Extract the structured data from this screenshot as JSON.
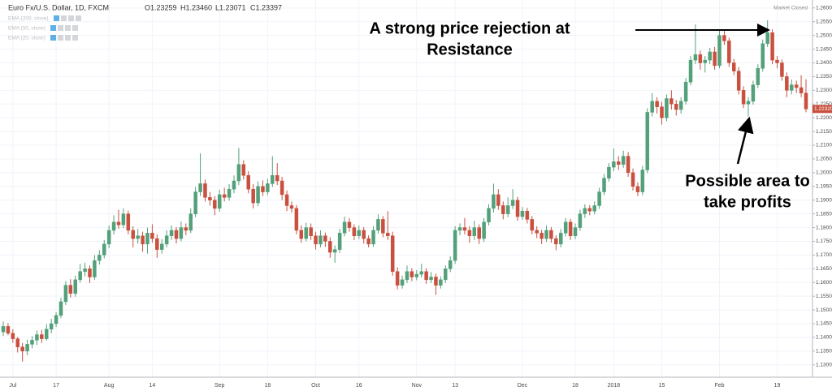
{
  "chart_data": {
    "type": "candlestick",
    "title": "Euro Fx/U.S. Dollar, 1D, FXCM",
    "ohlc_readout": [
      "O1.23259",
      "H1.23460",
      "L1.23071",
      "C1.23397"
    ],
    "indicators": [
      "EMA (200, close)",
      "EMA (50, close)",
      "EMA (20, close)"
    ],
    "status": "Market Closed",
    "annotations": [
      [
        "A strong price rejection at",
        "Resistance"
      ],
      [
        "Possible area to",
        "take profits"
      ]
    ],
    "up_color": "#53a07a",
    "down_color": "#c9503f",
    "grid": true,
    "last_price": {
      "value": 1.2232,
      "label": "1.22320"
    },
    "ylim": [
      1.1255,
      1.2629
    ],
    "yticks": [
      {
        "value": 1.13,
        "label": "1.13000"
      },
      {
        "value": 1.135,
        "label": "1.13500"
      },
      {
        "value": 1.14,
        "label": "1.14000"
      },
      {
        "value": 1.145,
        "label": "1.14500"
      },
      {
        "value": 1.15,
        "label": "1.15000"
      },
      {
        "value": 1.155,
        "label": "1.15500"
      },
      {
        "value": 1.16,
        "label": "1.16000"
      },
      {
        "value": 1.165,
        "label": "1.16500"
      },
      {
        "value": 1.17,
        "label": "1.17000"
      },
      {
        "value": 1.175,
        "label": "1.17500"
      },
      {
        "value": 1.18,
        "label": "1.18000"
      },
      {
        "value": 1.185,
        "label": "1.18500"
      },
      {
        "value": 1.19,
        "label": "1.19000"
      },
      {
        "value": 1.195,
        "label": "1.19500"
      },
      {
        "value": 1.2,
        "label": "1.20000"
      },
      {
        "value": 1.205,
        "label": "1.20500"
      },
      {
        "value": 1.21,
        "label": "1.21000"
      },
      {
        "value": 1.215,
        "label": "1.21500"
      },
      {
        "value": 1.22,
        "label": "1.22000"
      },
      {
        "value": 1.225,
        "label": "1.22500"
      },
      {
        "value": 1.23,
        "label": "1.23000"
      },
      {
        "value": 1.235,
        "label": "1.23500"
      },
      {
        "value": 1.24,
        "label": "1.24000"
      },
      {
        "value": 1.245,
        "label": "1.24500"
      },
      {
        "value": 1.25,
        "label": "1.25000"
      },
      {
        "value": 1.255,
        "label": "1.25500"
      },
      {
        "value": 1.26,
        "label": "1.26000"
      }
    ],
    "categories": [
      null,
      null,
      "Jul",
      null,
      null,
      null,
      null,
      null,
      null,
      null,
      null,
      "17",
      null,
      null,
      null,
      null,
      null,
      null,
      null,
      null,
      null,
      null,
      "Aug",
      null,
      null,
      null,
      null,
      null,
      null,
      null,
      null,
      "14",
      null,
      null,
      null,
      null,
      null,
      null,
      null,
      null,
      null,
      null,
      null,
      null,
      null,
      "Sep",
      null,
      null,
      null,
      null,
      null,
      null,
      null,
      null,
      null,
      "18",
      null,
      null,
      null,
      null,
      null,
      null,
      null,
      null,
      null,
      "Oct",
      null,
      null,
      null,
      null,
      null,
      null,
      null,
      null,
      "16",
      null,
      null,
      null,
      null,
      null,
      null,
      null,
      null,
      null,
      null,
      null,
      "Nov",
      null,
      null,
      null,
      null,
      null,
      null,
      null,
      "13",
      null,
      null,
      null,
      null,
      null,
      null,
      null,
      null,
      null,
      null,
      null,
      null,
      null,
      "Dec",
      null,
      null,
      null,
      null,
      null,
      null,
      null,
      null,
      null,
      null,
      "18",
      null,
      null,
      null,
      null,
      null,
      null,
      null,
      "2018",
      null,
      null,
      null,
      null,
      null,
      null,
      null,
      null,
      null,
      "15",
      null,
      null,
      null,
      null,
      null,
      null,
      null,
      null,
      null,
      null,
      null,
      "Feb",
      null,
      null,
      null,
      null,
      null,
      null,
      null,
      null,
      null,
      null,
      null,
      "19",
      null,
      null,
      null,
      null,
      null,
      null
    ],
    "ohlc": [
      [
        1.142,
        1.1458,
        1.1405,
        1.144
      ],
      [
        1.144,
        1.1452,
        1.1408,
        1.1415
      ],
      [
        1.1415,
        1.143,
        1.138,
        1.1395
      ],
      [
        1.1395,
        1.1402,
        1.1345,
        1.1365
      ],
      [
        1.1365,
        1.138,
        1.1312,
        1.135
      ],
      [
        1.135,
        1.1392,
        1.1335,
        1.1375
      ],
      [
        1.1375,
        1.1405,
        1.136,
        1.139
      ],
      [
        1.139,
        1.1425,
        1.1372,
        1.141
      ],
      [
        1.141,
        1.1428,
        1.138,
        1.1395
      ],
      [
        1.1395,
        1.1448,
        1.1388,
        1.143
      ],
      [
        1.143,
        1.1468,
        1.1415,
        1.145
      ],
      [
        1.145,
        1.1492,
        1.1438,
        1.148
      ],
      [
        1.148,
        1.1545,
        1.147,
        1.153
      ],
      [
        1.153,
        1.1605,
        1.1518,
        1.159
      ],
      [
        1.159,
        1.1612,
        1.1545,
        1.156
      ],
      [
        1.156,
        1.1625,
        1.1548,
        1.161
      ],
      [
        1.161,
        1.1668,
        1.16,
        1.164
      ],
      [
        1.164,
        1.1672,
        1.1622,
        1.165
      ],
      [
        1.165,
        1.1662,
        1.1598,
        1.162
      ],
      [
        1.162,
        1.17,
        1.161,
        1.168
      ],
      [
        1.168,
        1.1718,
        1.1665,
        1.17
      ],
      [
        1.17,
        1.1755,
        1.1688,
        1.174
      ],
      [
        1.174,
        1.1808,
        1.1725,
        1.179
      ],
      [
        1.179,
        1.1845,
        1.1775,
        1.182
      ],
      [
        1.182,
        1.1865,
        1.1795,
        1.181
      ],
      [
        1.181,
        1.187,
        1.1798,
        1.185
      ],
      [
        1.185,
        1.1862,
        1.1775,
        1.179
      ],
      [
        1.179,
        1.1805,
        1.1728,
        1.176
      ],
      [
        1.176,
        1.1795,
        1.1742,
        1.177
      ],
      [
        1.177,
        1.1785,
        1.1712,
        1.174
      ],
      [
        1.174,
        1.18,
        1.1705,
        1.178
      ],
      [
        1.178,
        1.1812,
        1.1745,
        1.176
      ],
      [
        1.176,
        1.1775,
        1.169,
        1.172
      ],
      [
        1.172,
        1.1758,
        1.1705,
        1.174
      ],
      [
        1.174,
        1.179,
        1.1728,
        1.177
      ],
      [
        1.177,
        1.1808,
        1.1755,
        1.179
      ],
      [
        1.179,
        1.1802,
        1.1742,
        1.176
      ],
      [
        1.176,
        1.1822,
        1.175,
        1.18
      ],
      [
        1.18,
        1.1815,
        1.1772,
        1.179
      ],
      [
        1.179,
        1.187,
        1.178,
        1.185
      ],
      [
        1.185,
        1.1948,
        1.1838,
        1.193
      ],
      [
        1.193,
        1.207,
        1.1915,
        1.196
      ],
      [
        1.196,
        1.1975,
        1.1895,
        1.191
      ],
      [
        1.191,
        1.193,
        1.188,
        1.19
      ],
      [
        1.19,
        1.1915,
        1.1845,
        1.187
      ],
      [
        1.187,
        1.1938,
        1.1858,
        1.192
      ],
      [
        1.192,
        1.1945,
        1.1895,
        1.191
      ],
      [
        1.191,
        1.1958,
        1.1898,
        1.194
      ],
      [
        1.194,
        1.199,
        1.1925,
        1.197
      ],
      [
        1.197,
        1.209,
        1.1955,
        1.203
      ],
      [
        1.203,
        1.2045,
        1.1975,
        1.199
      ],
      [
        1.199,
        1.2005,
        1.1925,
        1.194
      ],
      [
        1.194,
        1.1958,
        1.187,
        1.189
      ],
      [
        1.189,
        1.1968,
        1.1878,
        1.195
      ],
      [
        1.195,
        1.1972,
        1.1915,
        1.193
      ],
      [
        1.193,
        1.1978,
        1.1918,
        1.196
      ],
      [
        1.196,
        1.206,
        1.1948,
        1.199
      ],
      [
        1.199,
        1.2035,
        1.1955,
        1.197
      ],
      [
        1.197,
        1.1985,
        1.19,
        1.192
      ],
      [
        1.192,
        1.1935,
        1.186,
        1.188
      ],
      [
        1.188,
        1.1895,
        1.1855,
        1.187
      ],
      [
        1.187,
        1.1882,
        1.1775,
        1.179
      ],
      [
        1.179,
        1.1808,
        1.1745,
        1.176
      ],
      [
        1.176,
        1.1818,
        1.175,
        1.18
      ],
      [
        1.18,
        1.1815,
        1.1755,
        1.177
      ],
      [
        1.177,
        1.1785,
        1.172,
        1.174
      ],
      [
        1.174,
        1.179,
        1.1728,
        1.177
      ],
      [
        1.177,
        1.1782,
        1.173,
        1.175
      ],
      [
        1.175,
        1.1765,
        1.169,
        1.171
      ],
      [
        1.171,
        1.1735,
        1.1672,
        1.172
      ],
      [
        1.172,
        1.1795,
        1.1708,
        1.178
      ],
      [
        1.178,
        1.184,
        1.1768,
        1.182
      ],
      [
        1.182,
        1.1835,
        1.1785,
        1.18
      ],
      [
        1.18,
        1.1812,
        1.1755,
        1.177
      ],
      [
        1.177,
        1.1808,
        1.1758,
        1.179
      ],
      [
        1.179,
        1.1802,
        1.1742,
        1.176
      ],
      [
        1.176,
        1.1772,
        1.1728,
        1.174
      ],
      [
        1.174,
        1.1805,
        1.173,
        1.179
      ],
      [
        1.179,
        1.1848,
        1.1778,
        1.183
      ],
      [
        1.183,
        1.1842,
        1.1765,
        1.178
      ],
      [
        1.178,
        1.186,
        1.1755,
        1.177
      ],
      [
        1.177,
        1.1785,
        1.1625,
        1.164
      ],
      [
        1.164,
        1.1655,
        1.1575,
        1.159
      ],
      [
        1.159,
        1.1625,
        1.1578,
        1.161
      ],
      [
        1.161,
        1.1662,
        1.1598,
        1.164
      ],
      [
        1.164,
        1.1652,
        1.1605,
        1.162
      ],
      [
        1.162,
        1.1645,
        1.1608,
        1.163
      ],
      [
        1.163,
        1.1668,
        1.1618,
        1.164
      ],
      [
        1.164,
        1.1652,
        1.1595,
        1.161
      ],
      [
        1.161,
        1.1638,
        1.1598,
        1.162
      ],
      [
        1.162,
        1.1632,
        1.1555,
        1.159
      ],
      [
        1.159,
        1.1622,
        1.1578,
        1.161
      ],
      [
        1.161,
        1.1662,
        1.1598,
        1.165
      ],
      [
        1.165,
        1.1695,
        1.1638,
        1.168
      ],
      [
        1.168,
        1.1805,
        1.1668,
        1.179
      ],
      [
        1.179,
        1.1815,
        1.1772,
        1.18
      ],
      [
        1.18,
        1.1835,
        1.1775,
        1.179
      ],
      [
        1.179,
        1.1805,
        1.1745,
        1.177
      ],
      [
        1.177,
        1.1825,
        1.1755,
        1.18
      ],
      [
        1.18,
        1.1812,
        1.174,
        1.176
      ],
      [
        1.176,
        1.1835,
        1.1748,
        1.182
      ],
      [
        1.182,
        1.1885,
        1.1808,
        1.187
      ],
      [
        1.187,
        1.196,
        1.1855,
        1.192
      ],
      [
        1.192,
        1.194,
        1.1865,
        1.188
      ],
      [
        1.188,
        1.1895,
        1.183,
        1.185
      ],
      [
        1.185,
        1.191,
        1.1838,
        1.188
      ],
      [
        1.188,
        1.194,
        1.1868,
        1.19
      ],
      [
        1.19,
        1.1912,
        1.1825,
        1.184
      ],
      [
        1.184,
        1.1875,
        1.1828,
        1.186
      ],
      [
        1.186,
        1.1872,
        1.1815,
        1.183
      ],
      [
        1.183,
        1.1842,
        1.1775,
        1.179
      ],
      [
        1.179,
        1.1805,
        1.1762,
        1.178
      ],
      [
        1.178,
        1.1792,
        1.174,
        1.176
      ],
      [
        1.176,
        1.1808,
        1.1748,
        1.179
      ],
      [
        1.179,
        1.1802,
        1.1745,
        1.176
      ],
      [
        1.176,
        1.1772,
        1.1718,
        1.174
      ],
      [
        1.174,
        1.1795,
        1.1728,
        1.178
      ],
      [
        1.178,
        1.1835,
        1.1768,
        1.182
      ],
      [
        1.182,
        1.1832,
        1.1755,
        1.177
      ],
      [
        1.177,
        1.1815,
        1.1758,
        1.18
      ],
      [
        1.18,
        1.1865,
        1.1788,
        1.185
      ],
      [
        1.185,
        1.1885,
        1.1835,
        1.187
      ],
      [
        1.187,
        1.1882,
        1.1845,
        1.186
      ],
      [
        1.186,
        1.1895,
        1.1848,
        1.188
      ],
      [
        1.188,
        1.1945,
        1.1868,
        1.193
      ],
      [
        1.193,
        1.1995,
        1.1918,
        1.198
      ],
      [
        1.198,
        1.2035,
        1.1968,
        1.202
      ],
      [
        1.202,
        1.2088,
        1.2005,
        1.204
      ],
      [
        1.204,
        1.206,
        1.201,
        1.203
      ],
      [
        1.203,
        1.208,
        1.2018,
        1.206
      ],
      [
        1.206,
        1.2075,
        1.1985,
        1.2
      ],
      [
        1.2,
        1.2015,
        1.1935,
        1.195
      ],
      [
        1.195,
        1.1965,
        1.1915,
        1.193
      ],
      [
        1.193,
        1.2025,
        1.1918,
        1.201
      ],
      [
        1.201,
        1.2235,
        1.1998,
        1.222
      ],
      [
        1.222,
        1.229,
        1.2205,
        1.226
      ],
      [
        1.226,
        1.2275,
        1.2215,
        1.224
      ],
      [
        1.224,
        1.2258,
        1.2175,
        1.22
      ],
      [
        1.22,
        1.2285,
        1.2188,
        1.227
      ],
      [
        1.227,
        1.23,
        1.223,
        1.225
      ],
      [
        1.225,
        1.2265,
        1.2208,
        1.223
      ],
      [
        1.223,
        1.2275,
        1.2215,
        1.226
      ],
      [
        1.226,
        1.2345,
        1.2248,
        1.233
      ],
      [
        1.233,
        1.2425,
        1.2318,
        1.241
      ],
      [
        1.241,
        1.254,
        1.2395,
        1.243
      ],
      [
        1.243,
        1.2445,
        1.2375,
        1.24
      ],
      [
        1.24,
        1.2425,
        1.2365,
        1.241
      ],
      [
        1.241,
        1.2455,
        1.2395,
        1.244
      ],
      [
        1.244,
        1.2458,
        1.2375,
        1.239
      ],
      [
        1.239,
        1.2518,
        1.238,
        1.25
      ],
      [
        1.25,
        1.252,
        1.2465,
        1.248
      ],
      [
        1.248,
        1.2492,
        1.2385,
        1.24
      ],
      [
        1.24,
        1.2415,
        1.2355,
        1.237
      ],
      [
        1.237,
        1.2385,
        1.2285,
        1.23
      ],
      [
        1.23,
        1.2315,
        1.2235,
        1.225
      ],
      [
        1.225,
        1.2275,
        1.2205,
        1.226
      ],
      [
        1.226,
        1.2335,
        1.2248,
        1.232
      ],
      [
        1.232,
        1.2395,
        1.2308,
        1.238
      ],
      [
        1.238,
        1.2485,
        1.2368,
        1.247
      ],
      [
        1.247,
        1.2555,
        1.2458,
        1.251
      ],
      [
        1.251,
        1.2522,
        1.2395,
        1.241
      ],
      [
        1.241,
        1.2425,
        1.238,
        1.24
      ],
      [
        1.24,
        1.2412,
        1.2335,
        1.235
      ],
      [
        1.235,
        1.2365,
        1.2275,
        1.23
      ],
      [
        1.23,
        1.234,
        1.2285,
        1.232
      ],
      [
        1.232,
        1.2335,
        1.229,
        1.231
      ],
      [
        1.231,
        1.2355,
        1.2275,
        1.229
      ],
      [
        1.229,
        1.234,
        1.222,
        1.2232
      ]
    ]
  }
}
